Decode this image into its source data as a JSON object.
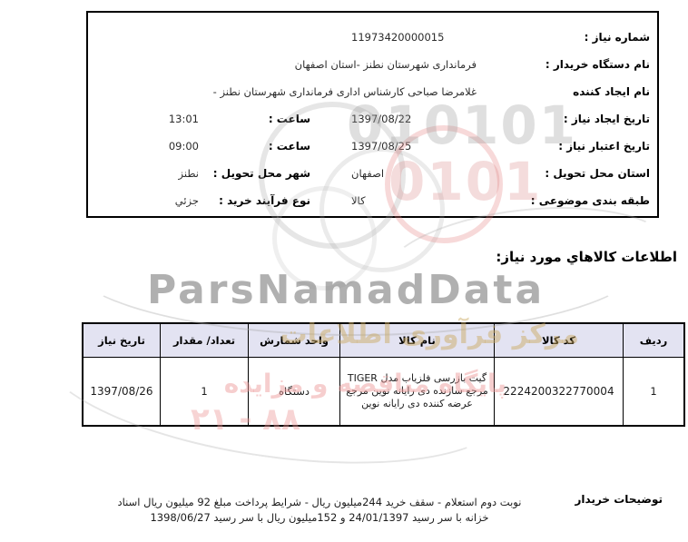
{
  "info_box": {
    "rows": [
      {
        "label": "شماره نیاز :",
        "value": "11973420000015"
      },
      {
        "label": "نام دستگاه خریدار :",
        "value": "فرمانداری شهرستان نطنز -استان اصفهان"
      },
      {
        "label": "نام ایجاد کننده",
        "value": "غلامرضا صباحی کارشناس اداری فرمانداری شهرستان نطنز -"
      },
      {
        "label": "تاریخ ایجاد نیاز :",
        "value": "1397/08/22",
        "mid_label": "ساعت :",
        "mid_value": "13:01"
      },
      {
        "label": "تاریخ اعتبار نیاز :",
        "value": "1397/08/25",
        "mid_label": "ساعت :",
        "mid_value": "09:00"
      },
      {
        "label": "استان محل تحویل :",
        "value": "اصفهان",
        "mid_label": "شهر محل تحویل :",
        "mid_value": "نطنز"
      },
      {
        "label": "طبقه بندی موضوعی :",
        "value": "کالا",
        "mid_label": "نوع فرآیند خرید :",
        "mid_value": "جزئي"
      }
    ]
  },
  "section_title": "اطلاعات کالاهاي مورد نیاز:",
  "items_table": {
    "headers": [
      "ردیف",
      "کد کالا",
      "نام کالا",
      "واحد شمارش",
      "تعداد/ مقدار",
      "تاریخ نیاز"
    ],
    "rows": [
      {
        "row_no": "1",
        "item_code": "2224200322770004",
        "item_name": "گیت بازرسی فلزیاب مدل TIGER مرجع سازنده دی رایانه نوین مرجع عرضه کننده دی رایانه نوین",
        "unit": "دستگاه",
        "quantity": "1",
        "need_date": "1397/08/26"
      }
    ]
  },
  "footer": {
    "label": "توضیحات خریدار",
    "lines": [
      "نوبت دوم استعلام - سقف خرید 244میلیون ریال - شرایط پرداخت مبلغ 92 میلیون ریال اسناد",
      "خزانه با سر رسید 24/01/1397 و 152میلیون ریال با سر رسید 1398/06/27"
    ]
  },
  "watermark": {
    "brand": "ParsNamadData",
    "digits_row1": "010101",
    "digits_row2": "0101",
    "gold_text": "مرکز فرآوری اطلاعات",
    "pink_text": "پایگاه مناقصه و مزایده",
    "pink_digits": "۲۱ - ۸۸",
    "colors": {
      "header_bg": "#e3e3f2",
      "gold": "#cbaa60",
      "pink": "#ec9898",
      "gray": "#808080"
    }
  }
}
